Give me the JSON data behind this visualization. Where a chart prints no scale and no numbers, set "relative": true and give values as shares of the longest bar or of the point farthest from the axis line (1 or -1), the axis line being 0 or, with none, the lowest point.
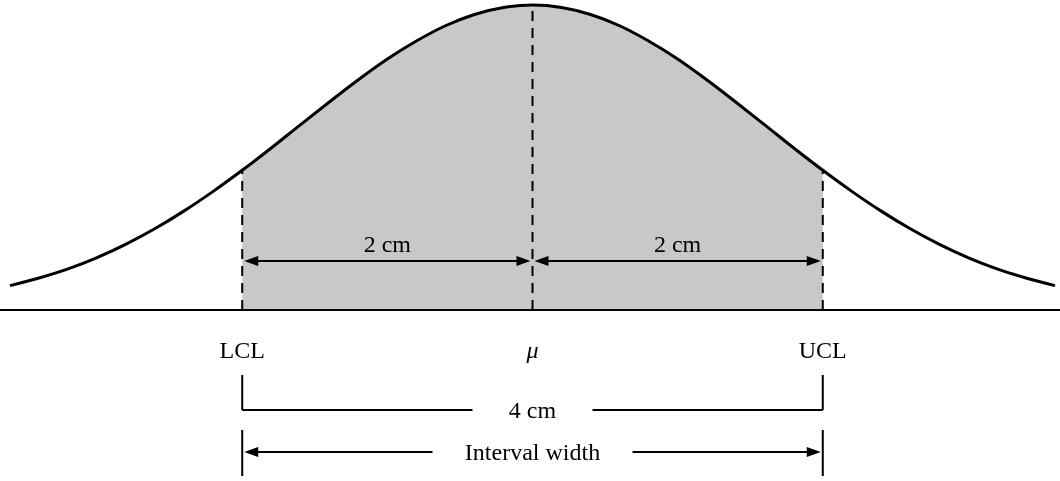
{
  "chart_data": {
    "type": "line",
    "relative": true,
    "tick_labels": "x",
    "categories": [
      null,
      null,
      null,
      null,
      null,
      null,
      null,
      null,
      "LCL",
      null,
      null,
      null,
      null,
      null,
      null,
      null,
      null,
      null,
      "μ",
      null,
      null,
      null,
      null,
      null,
      null,
      null,
      null,
      null,
      "UCL",
      null,
      null,
      null,
      null,
      null,
      null,
      null,
      null
    ],
    "series": [
      {
        "type": "area",
        "color": "#c8c8c8",
        "values": [
          null,
          null,
          null,
          null,
          null,
          null,
          null,
          null,
          0.458,
          0.531,
          0.607,
          0.682,
          0.755,
          0.823,
          0.882,
          0.932,
          0.969,
          0.992,
          1,
          0.992,
          0.969,
          0.932,
          0.882,
          0.823,
          0.755,
          0.682,
          0.607,
          0.531,
          0.458,
          null,
          null,
          null,
          null,
          null,
          null,
          null,
          null
        ]
      },
      {
        "color": "#000000",
        "values": [
          0.08,
          0.105,
          0.135,
          0.172,
          0.216,
          0.267,
          0.325,
          0.389,
          0.458,
          0.531,
          0.607,
          0.682,
          0.755,
          0.823,
          0.882,
          0.932,
          0.969,
          0.992,
          1,
          0.992,
          0.969,
          0.932,
          0.882,
          0.823,
          0.755,
          0.682,
          0.607,
          0.531,
          0.458,
          0.389,
          0.325,
          0.267,
          0.216,
          0.172,
          0.135,
          0.105,
          0.08
        ]
      }
    ],
    "ref_lines": [
      {
        "axis": "x",
        "value": "LCL",
        "line_style": "dashed",
        "color": "#000000"
      },
      {
        "axis": "x",
        "value": "μ",
        "line_style": "dashed",
        "color": "#000000"
      },
      {
        "axis": "x",
        "value": "UCL",
        "line_style": "dashed",
        "color": "#000000"
      }
    ],
    "annotations": [
      "2 cm",
      "2 cm",
      "4 cm",
      "Interval width"
    ]
  }
}
